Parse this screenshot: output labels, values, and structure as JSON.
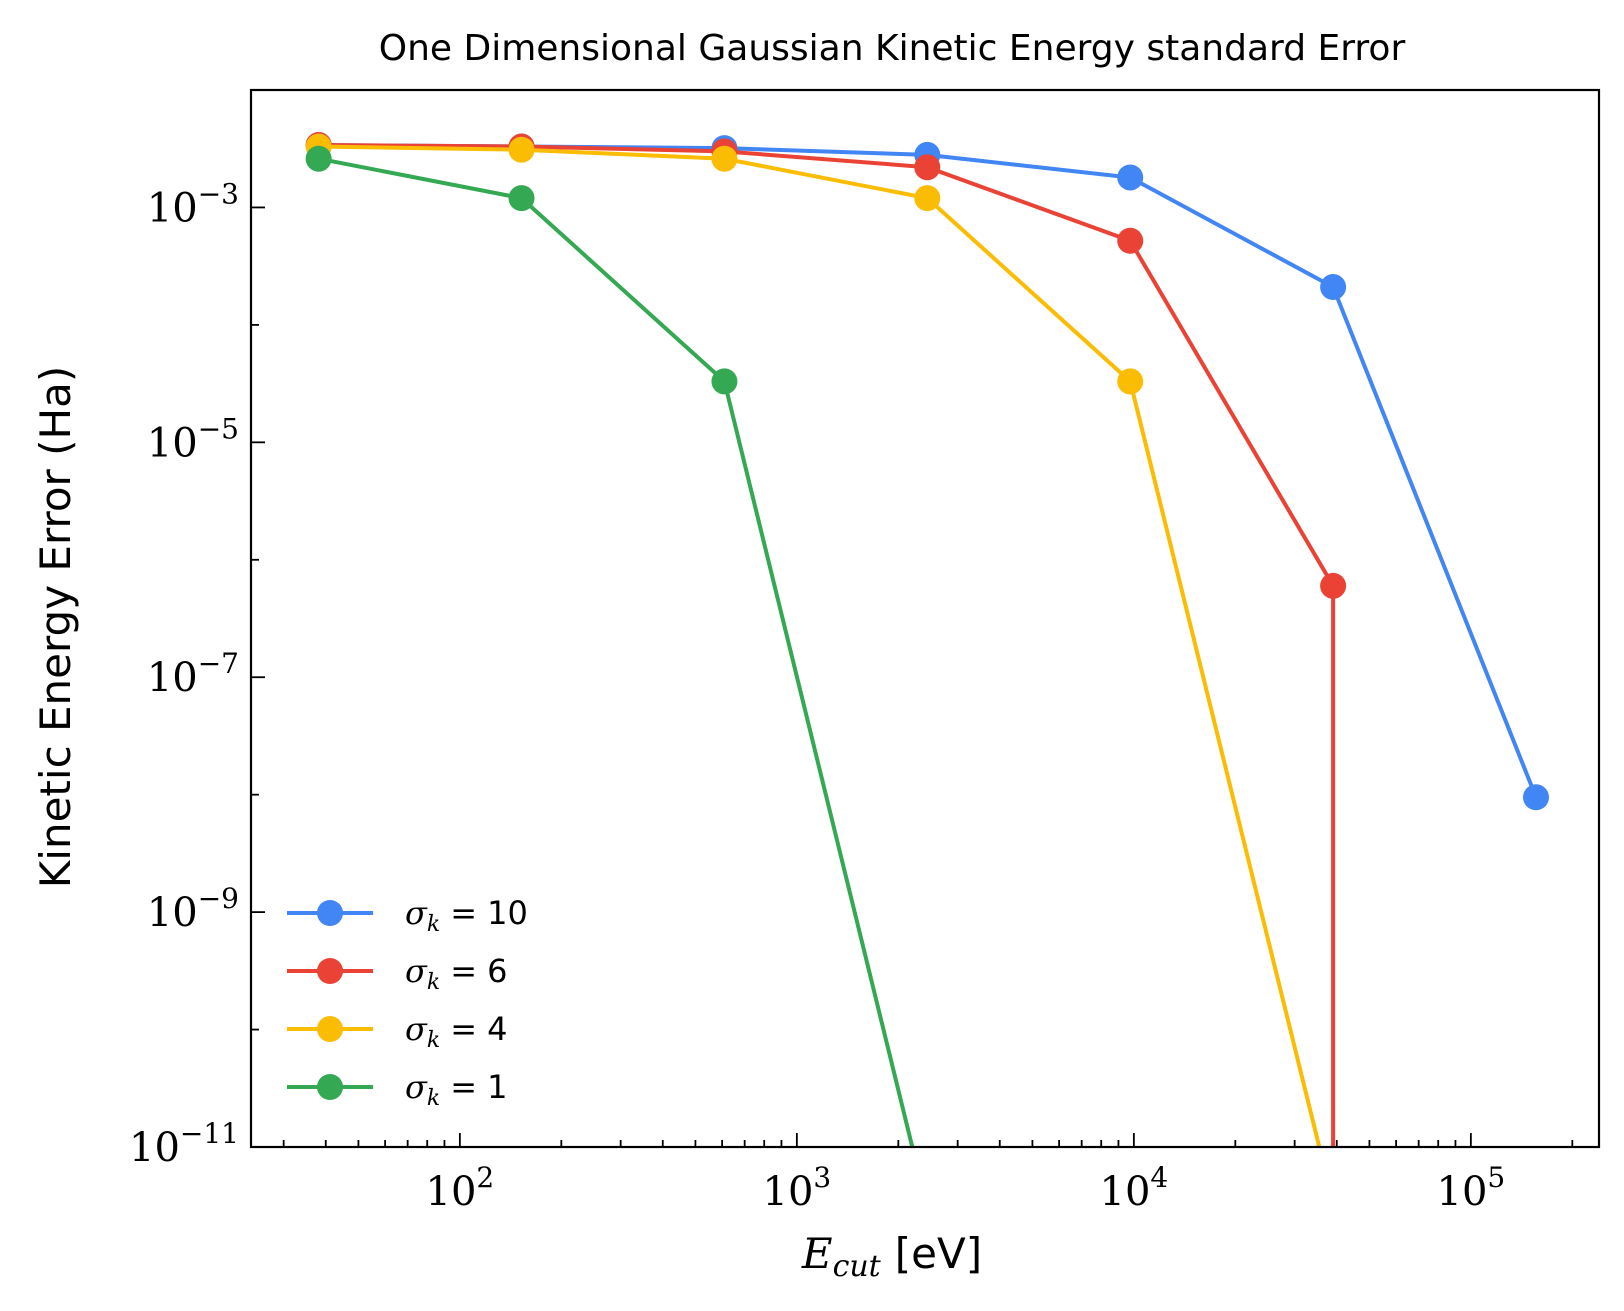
{
  "chart_data": {
    "type": "line",
    "title": "One Dimensional Gaussian Kinetic Energy standard Error",
    "xlabel": {
      "var": "E",
      "sub": "cut",
      "unit": "[eV]"
    },
    "ylabel": "Kinetic Energy Error (Ha)",
    "xscale": "log",
    "yscale": "log",
    "xlim": [
      24,
      240000
    ],
    "ylim": [
      1e-11,
      0.01
    ],
    "x_ticks": [
      {
        "value": 100,
        "base": "10",
        "exp": "2"
      },
      {
        "value": 1000,
        "base": "10",
        "exp": "3"
      },
      {
        "value": 10000,
        "base": "10",
        "exp": "4"
      },
      {
        "value": 100000,
        "base": "10",
        "exp": "5"
      }
    ],
    "y_ticks": [
      {
        "value": 0.001,
        "base": "10",
        "exp": "−3"
      },
      {
        "value": 1e-05,
        "base": "10",
        "exp": "−5"
      },
      {
        "value": 1e-07,
        "base": "10",
        "exp": "−7"
      },
      {
        "value": 1e-09,
        "base": "10",
        "exp": "−9"
      },
      {
        "value": 1e-11,
        "base": "10",
        "exp": "−11"
      }
    ],
    "grid": false,
    "legend": "lower-left",
    "series": [
      {
        "name": "σ_k = 10",
        "legend": {
          "sym": "σ",
          "sub": "k",
          "val": "= 10"
        },
        "color": "#4285f4",
        "x": [
          38.1,
          152.4,
          609.6,
          2438,
          9754,
          39014,
          156058
        ],
        "y": [
          0.0034,
          0.0033,
          0.0032,
          0.0028,
          0.0018,
          0.00021,
          9.5e-09
        ]
      },
      {
        "name": "σ_k = 6",
        "legend": {
          "sym": "σ",
          "sub": "k",
          "val": "= 6"
        },
        "color": "#ea4335",
        "x": [
          38.1,
          152.4,
          609.6,
          2438,
          9754,
          39014,
          39014
        ],
        "y": [
          0.0034,
          0.0033,
          0.003,
          0.0022,
          0.00052,
          6e-07,
          1e-11
        ]
      },
      {
        "name": "σ_k = 4",
        "legend": {
          "sym": "σ",
          "sub": "k",
          "val": "= 4"
        },
        "color": "#fbbc04",
        "x": [
          38.1,
          152.4,
          609.6,
          2438,
          9754,
          35500
        ],
        "y": [
          0.0033,
          0.0031,
          0.0026,
          0.0012,
          3.3e-05,
          1e-11
        ]
      },
      {
        "name": "σ_k = 1",
        "legend": {
          "sym": "σ",
          "sub": "k",
          "val": "= 1"
        },
        "color": "#34a853",
        "x": [
          38.1,
          152.4,
          609.6,
          2200
        ],
        "y": [
          0.0026,
          0.0012,
          3.3e-05,
          1e-11
        ]
      }
    ]
  }
}
